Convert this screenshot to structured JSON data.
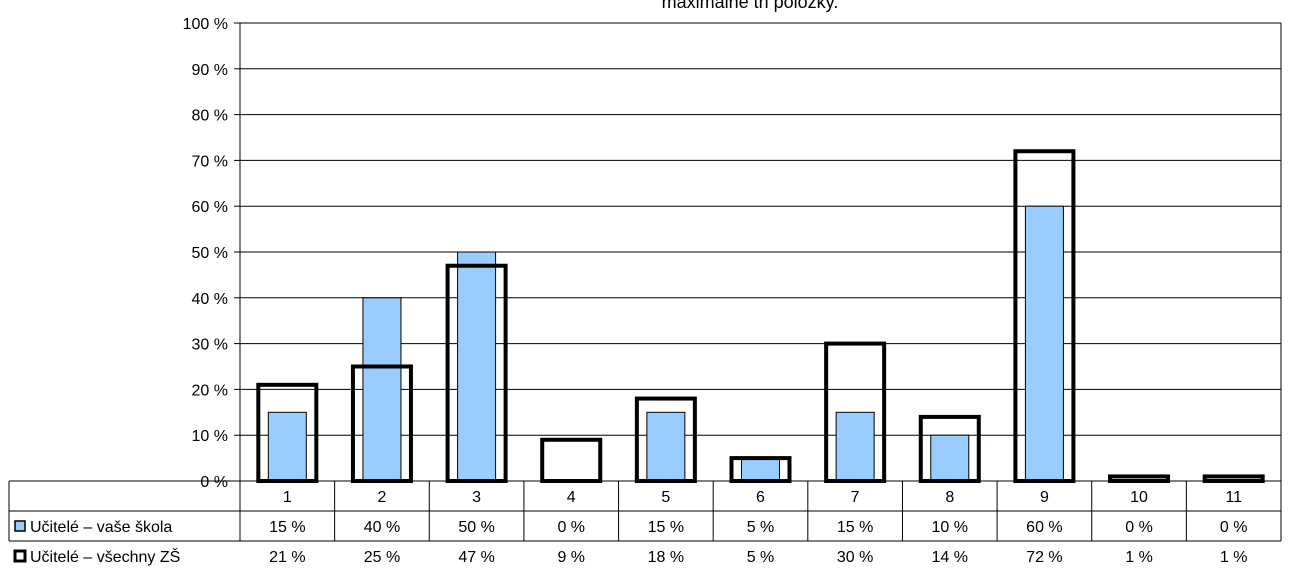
{
  "chart_data": {
    "type": "bar",
    "title": "maximálně tři položky.",
    "categories": [
      "1",
      "2",
      "3",
      "4",
      "5",
      "6",
      "7",
      "8",
      "9",
      "10",
      "11"
    ],
    "ylim": [
      0,
      100
    ],
    "yticks": [
      "0 %",
      "10 %",
      "20 %",
      "30 %",
      "40 %",
      "50 %",
      "60 %",
      "70 %",
      "80 %",
      "90 %",
      "100 %"
    ],
    "grid": true,
    "series": [
      {
        "name": "Učitelé – vaše škola",
        "values": [
          15,
          40,
          50,
          0,
          15,
          5,
          15,
          10,
          60,
          0,
          0
        ],
        "labels": [
          "15 %",
          "40 %",
          "50 %",
          "0 %",
          "15 %",
          "5 %",
          "15 %",
          "10 %",
          "60 %",
          "0 %",
          "0 %"
        ],
        "color": "#99ccff"
      },
      {
        "name": "Učitelé – všechny ZŠ",
        "values": [
          21,
          25,
          47,
          9,
          18,
          5,
          30,
          14,
          72,
          1,
          1
        ],
        "labels": [
          "21 %",
          "25 %",
          "47 %",
          "9 %",
          "18 %",
          "5 %",
          "30 %",
          "14 %",
          "72 %",
          "1 %",
          "1 %"
        ],
        "color": "#ffffff"
      }
    ],
    "legend": "data-table"
  }
}
